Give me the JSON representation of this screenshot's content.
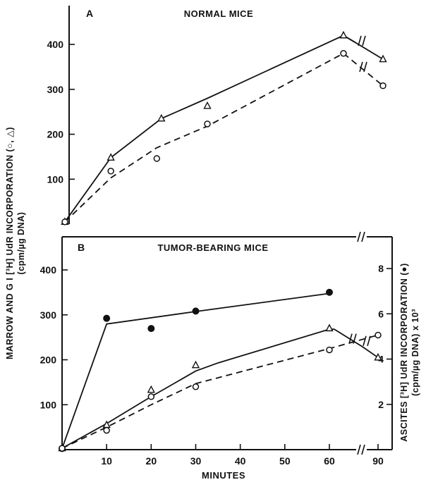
{
  "chart_data": [
    {
      "panel": "A",
      "type": "line",
      "title": "NORMAL MICE",
      "ylabel_left": "MARROW AND G I [3H] UdR INCORPORATION (○, △) (cpm/µg DNA)",
      "yticks_left": [
        100,
        200,
        300,
        400
      ],
      "ylim_left": [
        0,
        480
      ],
      "x_tick_labels": [
        "10",
        "20",
        "30",
        "40",
        "50",
        "60",
        "90"
      ],
      "x_axis_break": "between 60 and 90",
      "series": [
        {
          "marker": "triangle",
          "line": "solid",
          "points": [
            [
              0,
              5
            ],
            [
              10,
              148
            ],
            [
              21,
              235
            ],
            [
              31,
              263
            ],
            [
              62,
              420
            ],
            [
              90,
              367
            ]
          ],
          "curve": [
            [
              0,
              5
            ],
            [
              10,
              148
            ],
            [
              21,
              235
            ],
            [
              31,
              280
            ],
            [
              62,
              420
            ],
            [
              70,
              405
            ],
            [
              90,
              367
            ]
          ]
        },
        {
          "marker": "circle",
          "line": "dashed",
          "points": [
            [
              0,
              5
            ],
            [
              10,
              118
            ],
            [
              20,
              146
            ],
            [
              31,
              223
            ],
            [
              62,
              380
            ],
            [
              90,
              308
            ]
          ],
          "curve": [
            [
              0,
              5
            ],
            [
              10,
              103
            ],
            [
              20,
              170
            ],
            [
              31,
              218
            ],
            [
              62,
              380
            ],
            [
              90,
              308
            ]
          ]
        }
      ]
    },
    {
      "panel": "B",
      "type": "line",
      "title": "TUMOR-BEARING MICE",
      "ylabel_left": "MARROW AND G I [3H] UdR INCORPORATION (○, △) (cpm/µg DNA)",
      "ylabel_right": "ASCITES [3H] UdR INCORPORATION (●) (cpm/µg DNA) x 10³",
      "yticks_left": [
        100,
        200,
        300,
        400
      ],
      "ylim_left": [
        0,
        450
      ],
      "yticks_right": [
        2,
        4,
        6,
        8
      ],
      "ylim_right": [
        0,
        9
      ],
      "xlabel": "MINUTES",
      "x_tick_labels": [
        "10",
        "20",
        "30",
        "40",
        "50",
        "60",
        "90"
      ],
      "x_axis_break": "between 60 and 90",
      "series": [
        {
          "marker": "filled-circle",
          "line": "solid",
          "axis": "right",
          "points": [
            [
              0,
              0.05
            ],
            [
              10,
              5.8
            ],
            [
              20,
              5.35
            ],
            [
              30,
              6.12
            ],
            [
              60,
              6.95
            ]
          ],
          "curve": [
            [
              0,
              0.05
            ],
            [
              10,
              5.55
            ],
            [
              30,
              6.1
            ],
            [
              60,
              6.9
            ]
          ]
        },
        {
          "marker": "triangle",
          "line": "solid",
          "axis": "left",
          "points": [
            [
              0,
              3
            ],
            [
              10,
              55
            ],
            [
              20,
              133
            ],
            [
              30,
              188
            ],
            [
              60,
              270
            ],
            [
              90,
              205
            ]
          ],
          "curve": [
            [
              0,
              3
            ],
            [
              10,
              58
            ],
            [
              20,
              118
            ],
            [
              30,
              175
            ],
            [
              35,
              193
            ],
            [
              60,
              268
            ],
            [
              63,
              268
            ],
            [
              80,
              230
            ],
            [
              90,
              205
            ]
          ]
        },
        {
          "marker": "circle",
          "line": "dashed",
          "axis": "left",
          "points": [
            [
              0,
              3
            ],
            [
              10,
              43
            ],
            [
              20,
              118
            ],
            [
              30,
              140
            ],
            [
              60,
              222
            ],
            [
              90,
              255
            ]
          ],
          "curve": [
            [
              0,
              3
            ],
            [
              10,
              50
            ],
            [
              20,
              100
            ],
            [
              30,
              147
            ],
            [
              60,
              225
            ],
            [
              90,
              255
            ]
          ]
        }
      ]
    }
  ],
  "labels": {
    "panel_a_letter": "A",
    "panel_a_title": "NORMAL MICE",
    "panel_b_letter": "B",
    "panel_b_title": "TUMOR-BEARING MICE",
    "left_axis_title_line1": "MARROW AND G I [³H] UdR INCORPORATION (○, △)",
    "left_axis_title_line2": "(cpm/µg DNA)",
    "right_axis_title_line1": "ASCITES [³H] UdR INCORPORATION (●)",
    "right_axis_title_line2": "(cpm/µg DNA) x 10³",
    "x_axis_title": "MINUTES"
  }
}
